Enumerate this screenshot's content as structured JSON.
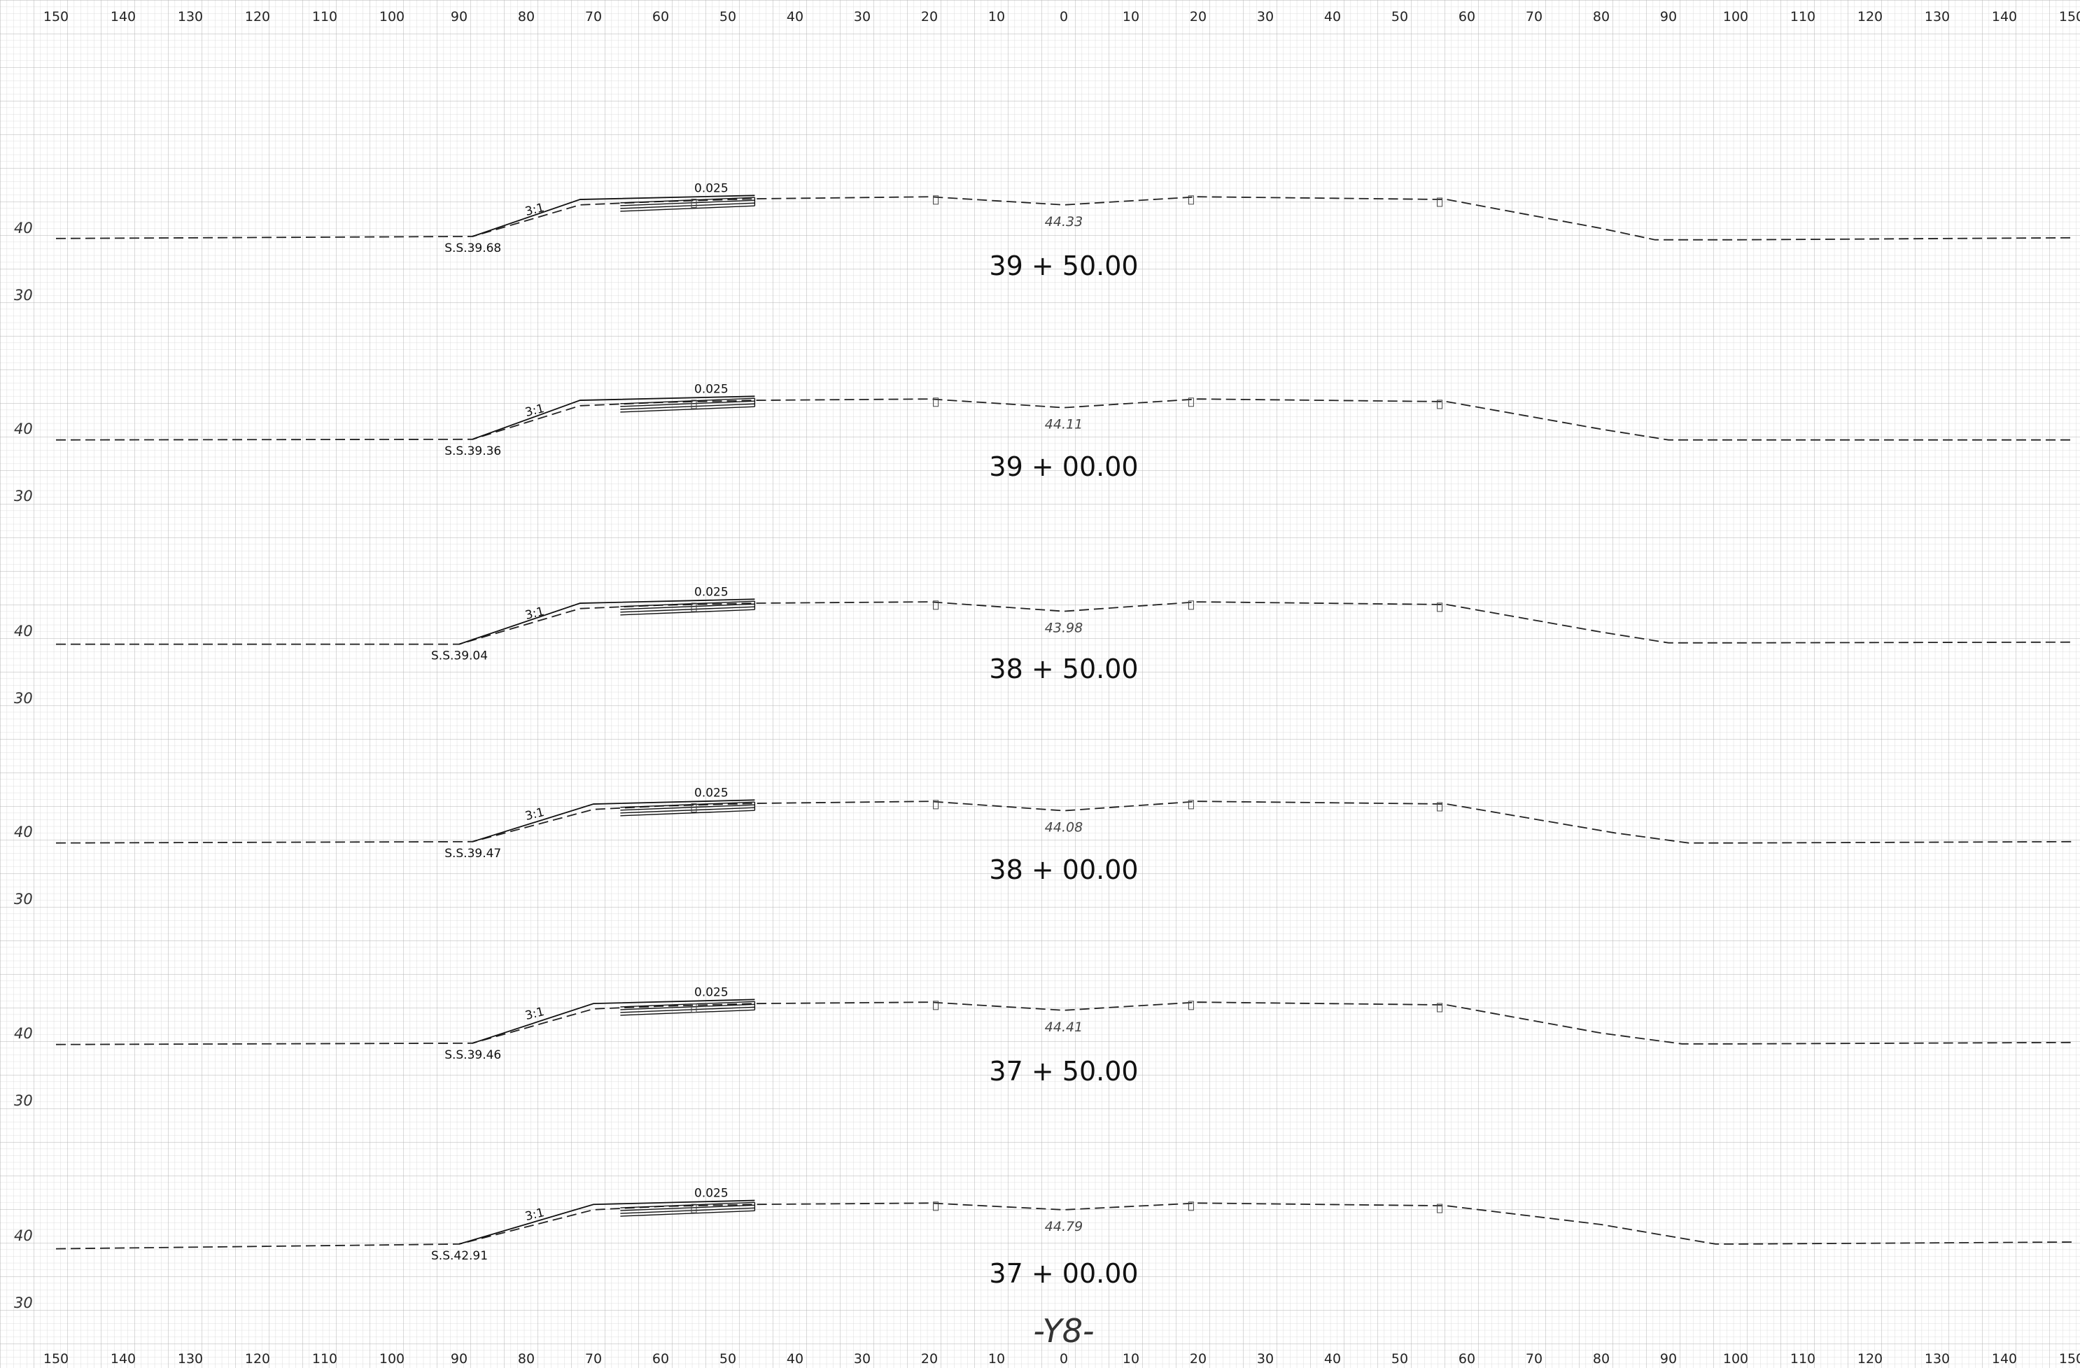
{
  "sheet_label": "-Y8-",
  "offset_axis": {
    "labels": [
      "150",
      "140",
      "130",
      "120",
      "110",
      "100",
      "90",
      "80",
      "70",
      "60",
      "50",
      "40",
      "30",
      "20",
      "10",
      "0",
      "10",
      "20",
      "30",
      "40",
      "50",
      "60",
      "70",
      "80",
      "90",
      "100",
      "110",
      "120",
      "130",
      "140",
      "150"
    ]
  },
  "elevation_axis": {
    "labels": [
      "40",
      "30"
    ]
  },
  "sections": [
    {
      "station": "39+50.00",
      "centerline_elev": "44.33",
      "slope_ratio": "3:1",
      "cross_slope": "0.025",
      "slope_stake": "S.S.39.68",
      "ground": [
        [
          -150,
          39.4
        ],
        [
          -88,
          39.7
        ],
        [
          -72,
          44.4
        ],
        [
          -60,
          44.9
        ],
        [
          -46,
          45.3
        ],
        [
          -20,
          45.6
        ],
        [
          0,
          44.4
        ],
        [
          20,
          45.6
        ],
        [
          57,
          45.2
        ],
        [
          80,
          40.9
        ],
        [
          88,
          39.2
        ],
        [
          100,
          39.2
        ],
        [
          150,
          39.5
        ]
      ]
    },
    {
      "station": "39+00.00",
      "centerline_elev": "44.11",
      "slope_ratio": "3:1",
      "cross_slope": "0.025",
      "slope_stake": "S.S.39.36",
      "ground": [
        [
          -150,
          39.3
        ],
        [
          -88,
          39.4
        ],
        [
          -72,
          44.4
        ],
        [
          -60,
          44.9
        ],
        [
          -46,
          45.2
        ],
        [
          -20,
          45.4
        ],
        [
          0,
          44.1
        ],
        [
          20,
          45.4
        ],
        [
          57,
          45.0
        ],
        [
          80,
          40.9
        ],
        [
          90,
          39.3
        ],
        [
          100,
          39.3
        ],
        [
          150,
          39.3
        ]
      ]
    },
    {
      "station": "38+50.00",
      "centerline_elev": "43.98",
      "slope_ratio": "3:1",
      "cross_slope": "0.025",
      "slope_stake": "S.S.39.04",
      "ground": [
        [
          -150,
          39.0
        ],
        [
          -90,
          39.0
        ],
        [
          -72,
          44.3
        ],
        [
          -60,
          44.8
        ],
        [
          -46,
          45.1
        ],
        [
          -20,
          45.3
        ],
        [
          0,
          43.9
        ],
        [
          20,
          45.3
        ],
        [
          57,
          44.9
        ],
        [
          80,
          40.8
        ],
        [
          90,
          39.2
        ],
        [
          100,
          39.2
        ],
        [
          150,
          39.3
        ]
      ]
    },
    {
      "station": "38+00.00",
      "centerline_elev": "44.08",
      "slope_ratio": "3:1",
      "cross_slope": "0.025",
      "slope_stake": "S.S.39.47",
      "ground": [
        [
          -150,
          39.3
        ],
        [
          -88,
          39.5
        ],
        [
          -70,
          44.3
        ],
        [
          -60,
          44.8
        ],
        [
          -46,
          45.2
        ],
        [
          -20,
          45.5
        ],
        [
          0,
          44.1
        ],
        [
          20,
          45.5
        ],
        [
          57,
          45.1
        ],
        [
          82,
          40.8
        ],
        [
          93,
          39.3
        ],
        [
          100,
          39.3
        ],
        [
          150,
          39.5
        ]
      ]
    },
    {
      "station": "37+50.00",
      "centerline_elev": "44.41",
      "slope_ratio": "3:1",
      "cross_slope": "0.025",
      "slope_stake": "S.S.39.46",
      "ground": [
        [
          -150,
          39.3
        ],
        [
          -88,
          39.5
        ],
        [
          -70,
          44.6
        ],
        [
          -60,
          45.0
        ],
        [
          -46,
          45.4
        ],
        [
          -20,
          45.6
        ],
        [
          0,
          44.4
        ],
        [
          20,
          45.6
        ],
        [
          57,
          45.2
        ],
        [
          80,
          41.0
        ],
        [
          92,
          39.4
        ],
        [
          100,
          39.4
        ],
        [
          150,
          39.6
        ]
      ]
    },
    {
      "station": "37+00.00",
      "centerline_elev": "44.79",
      "slope_ratio": "3:1",
      "cross_slope": "0.025",
      "slope_stake": "S.S.42.91",
      "ground": [
        [
          -150,
          39.0
        ],
        [
          -90,
          39.7
        ],
        [
          -70,
          44.8
        ],
        [
          -60,
          45.3
        ],
        [
          -46,
          45.6
        ],
        [
          -20,
          45.8
        ],
        [
          0,
          44.8
        ],
        [
          20,
          45.8
        ],
        [
          57,
          45.4
        ],
        [
          80,
          42.6
        ],
        [
          97,
          39.7
        ],
        [
          100,
          39.7
        ],
        [
          150,
          40.0
        ]
      ]
    }
  ]
}
